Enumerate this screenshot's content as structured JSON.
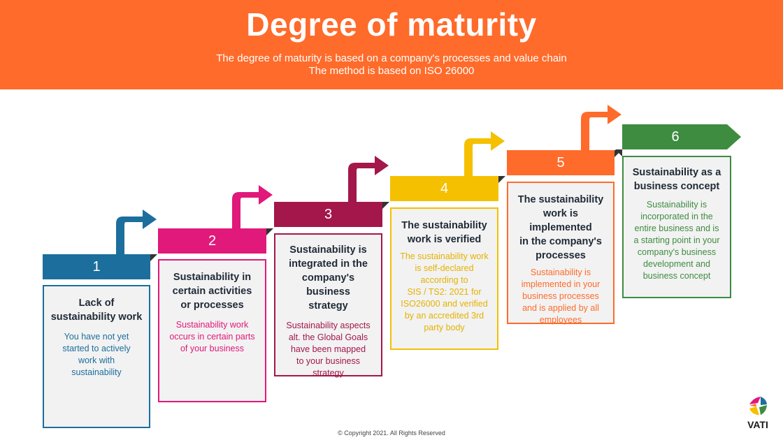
{
  "header": {
    "title": "Degree of maturity",
    "subtitle_line1": "The degree of maturity is based on a company's processes and value chain",
    "subtitle_line2": "The method is based on ISO 26000"
  },
  "steps": [
    {
      "number": "1",
      "color": "#1c6e9c",
      "heading": [
        "Lack of",
        "sustainability work"
      ],
      "body": [
        "You have not yet",
        "started to actively",
        "work with",
        "sustainability"
      ]
    },
    {
      "number": "2",
      "color": "#e0197a",
      "heading": [
        "Sustainability in",
        "certain activities",
        "or processes"
      ],
      "body": [
        "Sustainability work",
        "occurs in certain parts",
        "of your business"
      ]
    },
    {
      "number": "3",
      "color": "#a3174a",
      "heading": [
        "Sustainability is",
        "integrated in the",
        "company's business",
        "strategy"
      ],
      "body": [
        "Sustainability aspects",
        "alt. the Global Goals",
        "have been mapped",
        "to your business",
        "strategy"
      ]
    },
    {
      "number": "4",
      "color": "#f5c000",
      "heading": [
        "The sustainability",
        "work is verified"
      ],
      "body": [
        "The sustainability work",
        "is self-declared",
        "according to",
        "SIS / TS2: 2021 for",
        "ISO26000 and verified",
        "by an accredited 3rd",
        "party body"
      ]
    },
    {
      "number": "5",
      "color": "#ff6b2a",
      "heading": [
        "The sustainability",
        "work is implemented",
        "in the company's",
        "processes"
      ],
      "body": [
        "Sustainability is",
        "implemented in your",
        "business processes",
        "and is applied by all",
        "employees"
      ]
    },
    {
      "number": "6",
      "color": "#3d8c40",
      "heading": [
        "Sustainability as a",
        "business concept"
      ],
      "body": [
        "Sustainability is",
        "incorporated  in the",
        "entire business and is",
        "a starting point in your",
        "company's business",
        "development and",
        "business concept"
      ]
    }
  ],
  "footer": {
    "copyright": "© Copyright 2021. All Rights Reserved"
  },
  "logo": {
    "text": "VATI"
  }
}
